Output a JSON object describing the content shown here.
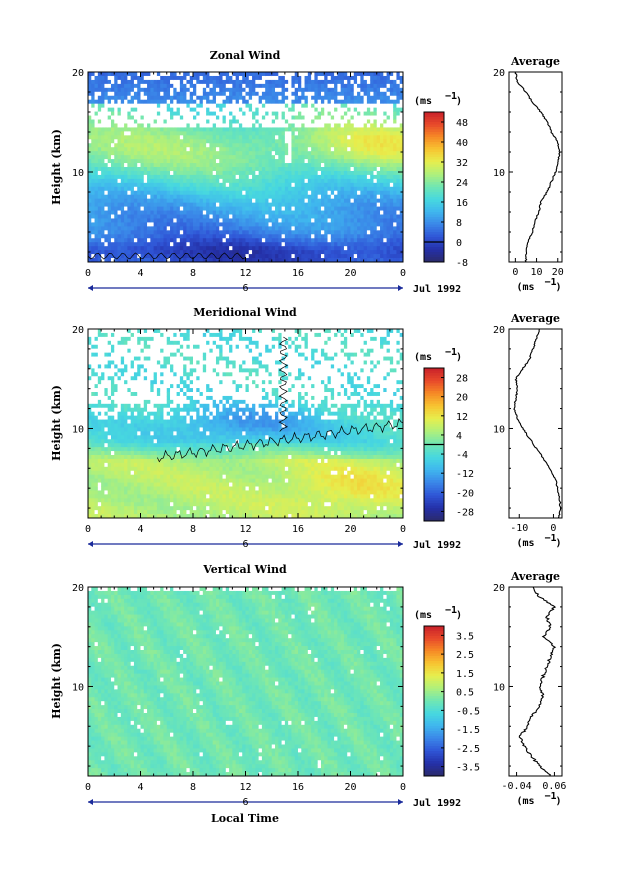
{
  "figure": {
    "x_axis_title": "Local Time",
    "day_marker_label": "6",
    "date_label": "Jul 1992",
    "unit_label": "(ms",
    "unit_exponent": "−1",
    "x_ticks": [
      "0",
      "4",
      "8",
      "12",
      "16",
      "20",
      "0"
    ]
  },
  "colors": {
    "colormap": [
      "#2b2a6b",
      "#2430a8",
      "#2f55d6",
      "#3a86e8",
      "#3fb6ee",
      "#47d8df",
      "#6fe6b4",
      "#aef07c",
      "#e6ef4e",
      "#f7c531",
      "#f68a26",
      "#e8492a",
      "#c8202a"
    ],
    "missing": "#ffffff",
    "contour": "#000000"
  },
  "chart_data": [
    {
      "type": "heatmap",
      "title": "Zonal Wind",
      "ylabel": "Height (km)",
      "xlabel": "Local Time",
      "xlim": [
        0,
        24
      ],
      "ylim": [
        1,
        20
      ],
      "y_ticks": [
        "20",
        "10"
      ],
      "colorbar_ticks": [
        "48",
        "40",
        "32",
        "24",
        "16",
        "8",
        "0",
        "-8"
      ],
      "colorbar_range": [
        -8,
        52
      ],
      "contour_level": 0,
      "profile": {
        "title": "Average",
        "x_ticks": [
          "0",
          "10",
          "20"
        ],
        "xlim": [
          -3,
          22
        ],
        "y_ticks": [
          "20",
          "10"
        ],
        "height_km": [
          1,
          2,
          3,
          4,
          5,
          6,
          7,
          8,
          9,
          10,
          11,
          12,
          13,
          14,
          15,
          16,
          17,
          18,
          19,
          20
        ],
        "value": [
          5,
          5,
          6,
          8,
          9,
          11,
          12,
          15,
          17,
          19,
          20,
          21,
          20,
          17,
          15,
          12,
          8,
          5,
          1,
          0
        ]
      }
    },
    {
      "type": "heatmap",
      "title": "Meridional Wind",
      "ylabel": "Height (km)",
      "xlabel": "Local Time",
      "xlim": [
        0,
        24
      ],
      "ylim": [
        1,
        20
      ],
      "y_ticks": [
        "20",
        "10"
      ],
      "colorbar_ticks": [
        "28",
        "20",
        "12",
        "4",
        "-4",
        "-12",
        "-20",
        "-28"
      ],
      "colorbar_range": [
        -32,
        32
      ],
      "contour_level": 0,
      "profile": {
        "title": "Average",
        "x_ticks": [
          "-10",
          "0"
        ],
        "xlim": [
          -13,
          2.5
        ],
        "y_ticks": [
          "20",
          "10"
        ],
        "height_km": [
          1,
          2,
          3,
          4,
          5,
          6,
          7,
          8,
          9,
          10,
          11,
          12,
          13,
          14,
          15,
          16,
          17,
          18,
          19,
          20
        ],
        "value": [
          1.5,
          2,
          1.8,
          1.2,
          0.5,
          -1,
          -3,
          -5,
          -7,
          -9,
          -10.5,
          -11.5,
          -11,
          -10.5,
          -11,
          -9,
          -7,
          -6,
          -5,
          -4
        ]
      }
    },
    {
      "type": "heatmap",
      "title": "Vertical Wind",
      "ylabel": "Height (km)",
      "xlabel": "Local Time",
      "xlim": [
        0,
        24
      ],
      "ylim": [
        1,
        20
      ],
      "y_ticks": [
        "20",
        "10"
      ],
      "colorbar_ticks": [
        "3.5",
        "2.5",
        "1.5",
        "0.5",
        "-0.5",
        "-1.5",
        "-2.5",
        "-3.5"
      ],
      "colorbar_range": [
        -4,
        4
      ],
      "profile": {
        "title": "Average",
        "x_ticks": [
          "-0.04",
          "0.06"
        ],
        "xlim": [
          -0.06,
          0.08
        ],
        "y_ticks": [
          "20",
          "10"
        ],
        "height_km": [
          1,
          2,
          3,
          4,
          5,
          6,
          7,
          8,
          9,
          10,
          11,
          12,
          13,
          14,
          15,
          16,
          17,
          18,
          19,
          20
        ],
        "value": [
          0.05,
          0.02,
          0.0,
          -0.02,
          -0.03,
          -0.01,
          0.0,
          0.02,
          0.03,
          0.02,
          0.03,
          0.04,
          0.05,
          0.06,
          0.03,
          0.05,
          0.04,
          0.06,
          0.02,
          0.0
        ]
      }
    }
  ]
}
